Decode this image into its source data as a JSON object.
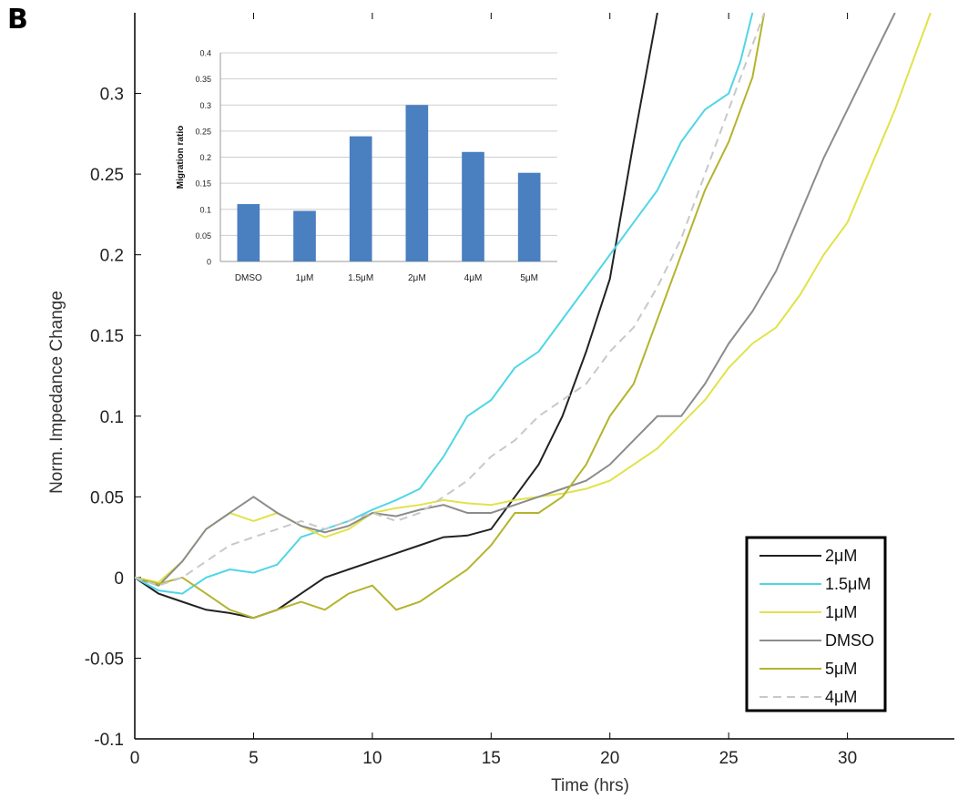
{
  "panel_label": "B",
  "chart_data": [
    {
      "type": "line",
      "xlabel": "Time (hrs)",
      "ylabel": "Norm. Impedance Change",
      "xlim": [
        0,
        34.5
      ],
      "ylim": [
        -0.1,
        0.35
      ],
      "x_ticks": [
        0,
        5,
        10,
        15,
        20,
        25,
        30
      ],
      "y_ticks": [
        -0.1,
        -0.05,
        0,
        0.05,
        0.1,
        0.15,
        0.2,
        0.25,
        0.3
      ],
      "x_tick_labels": [
        "0",
        "5",
        "10",
        "15",
        "20",
        "25",
        "30"
      ],
      "y_tick_labels": [
        "-0.1",
        "-0.05",
        "0",
        "0.05",
        "0.1",
        "0.15",
        "0.2",
        "0.25",
        "0.3"
      ],
      "grid": false,
      "legend": "bottom-right",
      "series": [
        {
          "name": "2μM",
          "color": "#222222",
          "dash": "solid",
          "points": [
            [
              0,
              0
            ],
            [
              1,
              -0.01
            ],
            [
              2,
              -0.015
            ],
            [
              3,
              -0.02
            ],
            [
              4,
              -0.022
            ],
            [
              5,
              -0.025
            ],
            [
              6,
              -0.02
            ],
            [
              7,
              -0.01
            ],
            [
              8,
              0
            ],
            [
              9,
              0.005
            ],
            [
              10,
              0.01
            ],
            [
              11,
              0.015
            ],
            [
              12,
              0.02
            ],
            [
              13,
              0.025
            ],
            [
              14,
              0.026
            ],
            [
              15,
              0.03
            ],
            [
              16,
              0.05
            ],
            [
              17,
              0.07
            ],
            [
              18,
              0.1
            ],
            [
              19,
              0.14
            ],
            [
              20,
              0.185
            ],
            [
              21,
              0.27
            ],
            [
              22,
              0.35
            ]
          ]
        },
        {
          "name": "1.5μM",
          "color": "#4fd6e6",
          "dash": "solid",
          "points": [
            [
              0,
              0
            ],
            [
              1,
              -0.008
            ],
            [
              2,
              -0.01
            ],
            [
              3,
              0
            ],
            [
              4,
              0.005
            ],
            [
              5,
              0.003
            ],
            [
              6,
              0.008
            ],
            [
              7,
              0.025
            ],
            [
              8,
              0.03
            ],
            [
              9,
              0.035
            ],
            [
              10,
              0.042
            ],
            [
              11,
              0.048
            ],
            [
              12,
              0.055
            ],
            [
              13,
              0.075
            ],
            [
              14,
              0.1
            ],
            [
              15,
              0.11
            ],
            [
              16,
              0.13
            ],
            [
              17,
              0.14
            ],
            [
              18,
              0.16
            ],
            [
              19,
              0.18
            ],
            [
              20,
              0.2
            ],
            [
              21,
              0.22
            ],
            [
              22,
              0.24
            ],
            [
              23,
              0.27
            ],
            [
              24,
              0.29
            ],
            [
              25,
              0.3
            ],
            [
              25.5,
              0.32
            ],
            [
              26,
              0.35
            ]
          ]
        },
        {
          "name": "1μM",
          "color": "#e2e24a",
          "dash": "solid",
          "points": [
            [
              0,
              0
            ],
            [
              1,
              -0.003
            ],
            [
              2,
              0.01
            ],
            [
              3,
              0.03
            ],
            [
              4,
              0.04
            ],
            [
              5,
              0.035
            ],
            [
              6,
              0.04
            ],
            [
              7,
              0.032
            ],
            [
              8,
              0.025
            ],
            [
              9,
              0.03
            ],
            [
              10,
              0.04
            ],
            [
              11,
              0.043
            ],
            [
              12,
              0.045
            ],
            [
              13,
              0.048
            ],
            [
              14,
              0.046
            ],
            [
              15,
              0.045
            ],
            [
              16,
              0.048
            ],
            [
              17,
              0.05
            ],
            [
              18,
              0.052
            ],
            [
              19,
              0.055
            ],
            [
              20,
              0.06
            ],
            [
              21,
              0.07
            ],
            [
              22,
              0.08
            ],
            [
              23,
              0.095
            ],
            [
              24,
              0.11
            ],
            [
              25,
              0.13
            ],
            [
              26,
              0.145
            ],
            [
              27,
              0.155
            ],
            [
              28,
              0.175
            ],
            [
              29,
              0.2
            ],
            [
              30,
              0.22
            ],
            [
              31,
              0.255
            ],
            [
              32,
              0.29
            ],
            [
              33,
              0.33
            ],
            [
              33.5,
              0.35
            ]
          ]
        },
        {
          "name": "DMSO",
          "color": "#8c8c8c",
          "dash": "solid",
          "points": [
            [
              0,
              0
            ],
            [
              1,
              -0.005
            ],
            [
              2,
              0.01
            ],
            [
              3,
              0.03
            ],
            [
              4,
              0.04
            ],
            [
              5,
              0.05
            ],
            [
              6,
              0.04
            ],
            [
              7,
              0.032
            ],
            [
              8,
              0.028
            ],
            [
              9,
              0.032
            ],
            [
              10,
              0.04
            ],
            [
              11,
              0.038
            ],
            [
              12,
              0.042
            ],
            [
              13,
              0.045
            ],
            [
              14,
              0.04
            ],
            [
              15,
              0.04
            ],
            [
              16,
              0.045
            ],
            [
              17,
              0.05
            ],
            [
              18,
              0.055
            ],
            [
              19,
              0.06
            ],
            [
              20,
              0.07
            ],
            [
              21,
              0.085
            ],
            [
              22,
              0.1
            ],
            [
              23,
              0.1
            ],
            [
              24,
              0.12
            ],
            [
              25,
              0.145
            ],
            [
              26,
              0.165
            ],
            [
              27,
              0.19
            ],
            [
              28,
              0.225
            ],
            [
              29,
              0.26
            ],
            [
              30,
              0.29
            ],
            [
              31,
              0.32
            ],
            [
              32,
              0.35
            ]
          ]
        },
        {
          "name": "5μM",
          "color": "#b4b42e",
          "dash": "solid",
          "points": [
            [
              0,
              0
            ],
            [
              1,
              -0.004
            ],
            [
              2,
              0
            ],
            [
              3,
              -0.01
            ],
            [
              4,
              -0.02
            ],
            [
              5,
              -0.025
            ],
            [
              6,
              -0.02
            ],
            [
              7,
              -0.015
            ],
            [
              8,
              -0.02
            ],
            [
              9,
              -0.01
            ],
            [
              10,
              -0.005
            ],
            [
              11,
              -0.02
            ],
            [
              12,
              -0.015
            ],
            [
              13,
              -0.005
            ],
            [
              14,
              0.005
            ],
            [
              15,
              0.02
            ],
            [
              16,
              0.04
            ],
            [
              17,
              0.04
            ],
            [
              18,
              0.05
            ],
            [
              19,
              0.07
            ],
            [
              20,
              0.1
            ],
            [
              21,
              0.12
            ],
            [
              22,
              0.16
            ],
            [
              23,
              0.2
            ],
            [
              24,
              0.24
            ],
            [
              25,
              0.27
            ],
            [
              26,
              0.31
            ],
            [
              26.5,
              0.35
            ]
          ]
        },
        {
          "name": "4μM",
          "color": "#c8c8c8",
          "dash": "dashed",
          "points": [
            [
              0,
              0
            ],
            [
              1,
              -0.005
            ],
            [
              2,
              0
            ],
            [
              3,
              0.01
            ],
            [
              4,
              0.02
            ],
            [
              5,
              0.025
            ],
            [
              6,
              0.03
            ],
            [
              7,
              0.035
            ],
            [
              8,
              0.03
            ],
            [
              9,
              0.035
            ],
            [
              10,
              0.04
            ],
            [
              11,
              0.035
            ],
            [
              12,
              0.04
            ],
            [
              13,
              0.05
            ],
            [
              14,
              0.06
            ],
            [
              15,
              0.075
            ],
            [
              16,
              0.085
            ],
            [
              17,
              0.1
            ],
            [
              18,
              0.11
            ],
            [
              19,
              0.12
            ],
            [
              20,
              0.14
            ],
            [
              21,
              0.155
            ],
            [
              22,
              0.18
            ],
            [
              23,
              0.21
            ],
            [
              24,
              0.25
            ],
            [
              25,
              0.29
            ],
            [
              26,
              0.33
            ],
            [
              26.5,
              0.35
            ]
          ]
        }
      ]
    },
    {
      "type": "bar",
      "ylabel": "Migration ratio",
      "categories": [
        "DMSO",
        "1μM",
        "1.5μM",
        "2μM",
        "4μM",
        "5μM"
      ],
      "values": [
        0.11,
        0.097,
        0.24,
        0.3,
        0.21,
        0.17
      ],
      "ylim": [
        0,
        0.4
      ],
      "y_ticks": [
        0,
        0.05,
        0.1,
        0.15,
        0.2,
        0.25,
        0.3,
        0.35,
        0.4
      ],
      "y_tick_labels": [
        "0",
        "0.05",
        "0.1",
        "0.15",
        "0.2",
        "0.25",
        "0.3",
        "0.35",
        "0.4"
      ],
      "bar_color": "#4a7fc0",
      "grid": true
    }
  ]
}
